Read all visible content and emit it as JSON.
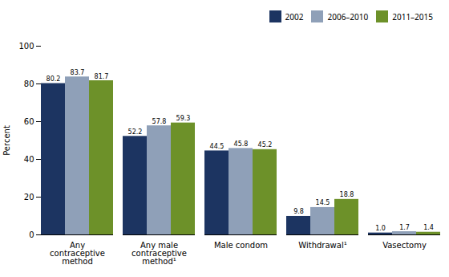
{
  "chart_data": {
    "type": "bar",
    "categories": [
      "Any\ncontraceptive\nmethod",
      "Any male\ncontraceptive\nmethod¹",
      "Male condom",
      "Withdrawal¹",
      "Vasectomy"
    ],
    "series": [
      {
        "name": "2002",
        "color": "#1c3461",
        "values": [
          80.2,
          52.2,
          44.5,
          9.8,
          1.0
        ],
        "value_labels": [
          "80.2",
          "52.2",
          "44.5",
          "9.8",
          "1.0"
        ]
      },
      {
        "name": "2006–2010",
        "color": "#8fa0b8",
        "values": [
          83.7,
          57.8,
          45.8,
          14.5,
          1.7
        ],
        "value_labels": [
          "83.7",
          "57.8",
          "45.8",
          "14.5",
          "1.7"
        ]
      },
      {
        "name": "2011–2015",
        "color": "#6d9129",
        "values": [
          81.7,
          59.3,
          45.2,
          18.8,
          1.4
        ],
        "value_labels": [
          "81.7",
          "59.3",
          "45.2",
          "18.8",
          "1.4"
        ]
      }
    ],
    "ylabel": "Percent",
    "ylim": [
      0,
      100
    ],
    "yticks": [
      0,
      20,
      40,
      60,
      80,
      100
    ],
    "grid": false,
    "legend": "upper right",
    "data_labels": true
  }
}
